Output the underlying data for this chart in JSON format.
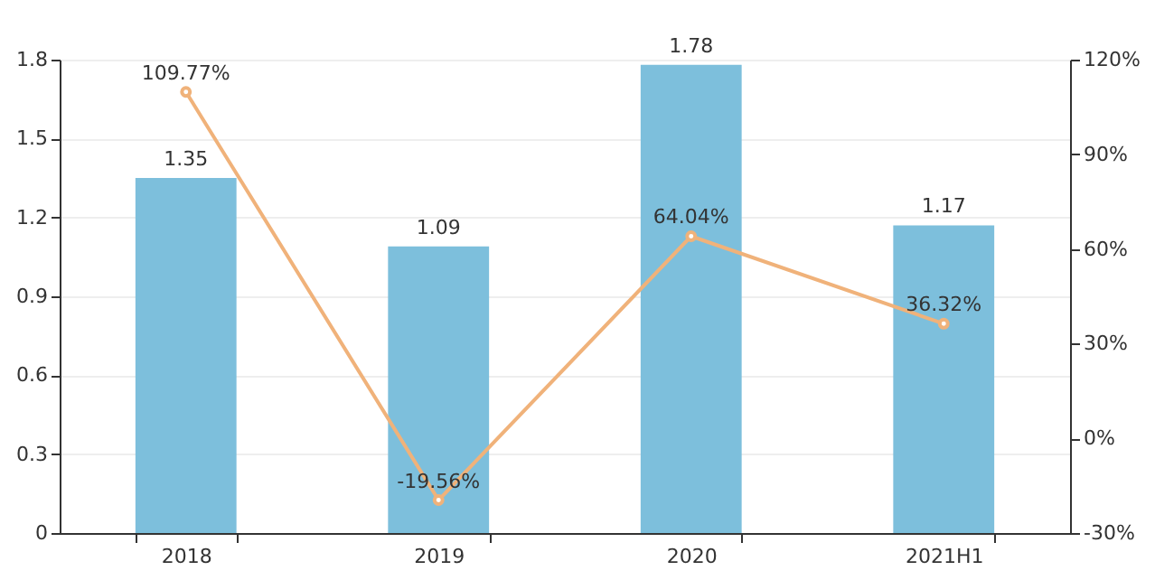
{
  "chart_data": {
    "type": "bar",
    "categories": [
      "2018",
      "2019",
      "2020",
      "2021H1"
    ],
    "series": [
      {
        "color": "#7dbfdc",
        "values": [
          1.35,
          1.09,
          1.78,
          1.17
        ],
        "value_labels": [
          "1.35",
          "1.09",
          "1.78",
          "1.17"
        ]
      },
      {
        "type": "line",
        "axis": "y2",
        "color": "#f0b27a",
        "marker": "circle",
        "values": [
          109.77,
          -19.56,
          64.04,
          36.32
        ],
        "value_labels": [
          "109.77%",
          "-19.56%",
          "64.04%",
          "36.32%"
        ]
      }
    ],
    "ylim": [
      0,
      1.8
    ],
    "yticks": [
      0,
      0.3,
      0.6,
      0.9,
      1.2,
      1.5,
      1.8
    ],
    "y2lim": [
      -30,
      120
    ],
    "y2ticks": [
      {
        "value": -30,
        "label": "-30%"
      },
      {
        "value": 0,
        "label": "0%"
      },
      {
        "value": 30,
        "label": "30%"
      },
      {
        "value": 60,
        "label": "60%"
      },
      {
        "value": 90,
        "label": "90%"
      },
      {
        "value": 120,
        "label": "120%"
      }
    ],
    "grid": "y"
  }
}
